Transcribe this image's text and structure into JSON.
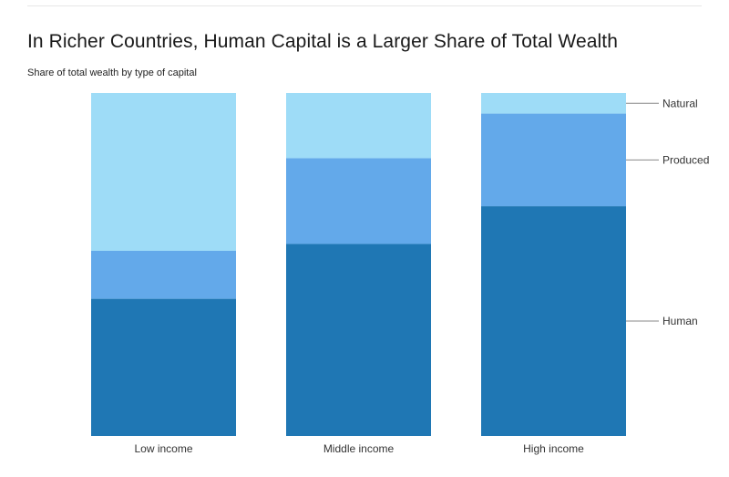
{
  "title": "In Richer Countries, Human Capital is a Larger Share of Total Wealth",
  "subtitle": "Share of total wealth by type of capital",
  "chart_data": {
    "type": "bar",
    "stacked": true,
    "categories": [
      "Low income",
      "Middle income",
      "High income"
    ],
    "series": [
      {
        "name": "Human",
        "color": "#1f77b4",
        "values": [
          40,
          56,
          67
        ]
      },
      {
        "name": "Produced",
        "color": "#63a9ea",
        "values": [
          14,
          25,
          27
        ]
      },
      {
        "name": "Natural",
        "color": "#9edcf7",
        "values": [
          46,
          19,
          6
        ]
      }
    ],
    "ylim": [
      0,
      100
    ],
    "xlabel": "",
    "ylabel": "",
    "grid": false,
    "legend": "right, labels at High income bar segments"
  }
}
